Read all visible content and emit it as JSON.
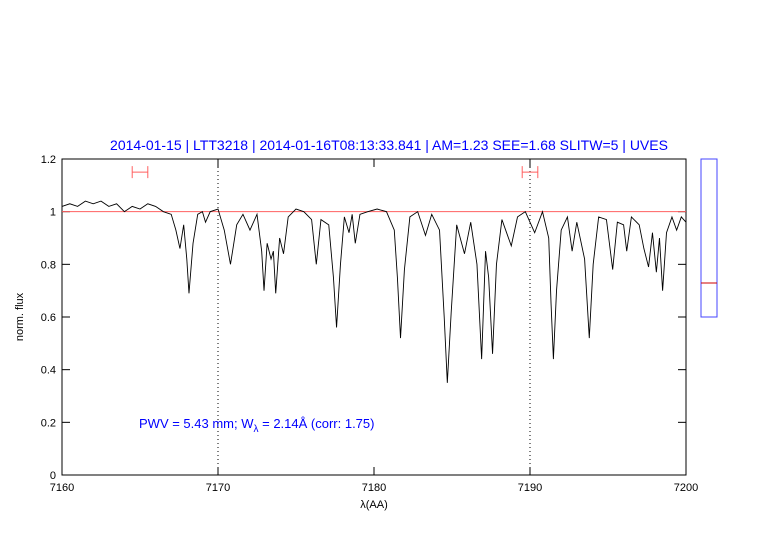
{
  "chart_data": {
    "type": "line",
    "title": "2014-01-15 | LTT3218 | 2014-01-16T08:13:33.841 | AM=1.23 SEE=1.68 SLITW=5 | UVES",
    "xlabel": "λ(AA)",
    "ylabel": "norm. flux",
    "annotation": [
      "PWV = 5.43 mm; W",
      "λ",
      " = 2.14Å (corr: 1.75)"
    ],
    "xlim": [
      7160,
      7200
    ],
    "ylim": [
      0,
      1.2
    ],
    "xticks": [
      7160,
      7170,
      7180,
      7190,
      7200
    ],
    "yticks": [
      0,
      0.2,
      0.4,
      0.6,
      0.8,
      1,
      1.2
    ],
    "hline": 1,
    "hline_color": "#ff6060",
    "vlines": [
      7170,
      7190
    ],
    "markers": [
      {
        "x": [
          7164.5,
          7165.5
        ],
        "y": 1.15
      },
      {
        "x": [
          7189.5,
          7190.5
        ],
        "y": 1.15
      }
    ],
    "marker_color": "#ff6060",
    "series": [
      {
        "color": "#000000",
        "x": [
          7160.0,
          7160.5,
          7161.0,
          7161.5,
          7162.0,
          7162.5,
          7163.0,
          7163.5,
          7164.0,
          7164.5,
          7165.0,
          7165.5,
          7166.0,
          7166.5,
          7167.0,
          7167.3,
          7167.56,
          7167.8,
          7168.0,
          7168.14,
          7168.4,
          7168.7,
          7169.0,
          7169.2,
          7169.5,
          7170.0,
          7170.4,
          7170.8,
          7171.2,
          7171.6,
          7172.05,
          7172.5,
          7172.8,
          7172.95,
          7173.15,
          7173.4,
          7173.55,
          7173.7,
          7173.95,
          7174.2,
          7174.5,
          7175.0,
          7175.5,
          7176.0,
          7176.3,
          7176.6,
          7177.1,
          7177.4,
          7177.6,
          7177.85,
          7178.1,
          7178.4,
          7178.6,
          7178.8,
          7179.1,
          7179.6,
          7180.2,
          7180.8,
          7181.3,
          7181.5,
          7181.7,
          7181.95,
          7182.3,
          7182.8,
          7183.3,
          7183.7,
          7184.2,
          7184.5,
          7184.7,
          7184.95,
          7185.3,
          7185.8,
          7186.2,
          7186.6,
          7186.9,
          7187.15,
          7187.35,
          7187.6,
          7187.85,
          7188.2,
          7188.8,
          7189.2,
          7189.7,
          7190.3,
          7190.8,
          7191.2,
          7191.35,
          7191.5,
          7191.7,
          7192.0,
          7192.4,
          7192.7,
          7193.0,
          7193.5,
          7193.8,
          7194.05,
          7194.4,
          7194.9,
          7195.3,
          7195.6,
          7196.0,
          7196.2,
          7196.5,
          7197.0,
          7197.3,
          7197.6,
          7197.85,
          7198.1,
          7198.3,
          7198.5,
          7198.75,
          7199.1,
          7199.4,
          7199.7,
          7200.0
        ],
        "values": [
          1.02,
          1.03,
          1.02,
          1.04,
          1.03,
          1.04,
          1.02,
          1.03,
          1.0,
          1.02,
          1.01,
          1.03,
          1.02,
          1.0,
          0.99,
          0.93,
          0.86,
          0.95,
          0.82,
          0.69,
          0.88,
          0.99,
          1.0,
          0.96,
          1.0,
          1.01,
          0.93,
          0.8,
          0.95,
          0.99,
          0.93,
          0.99,
          0.85,
          0.7,
          0.88,
          0.82,
          0.85,
          0.69,
          0.9,
          0.84,
          0.98,
          1.01,
          1.0,
          0.97,
          0.8,
          0.97,
          0.95,
          0.75,
          0.56,
          0.8,
          0.98,
          0.92,
          0.99,
          0.88,
          0.99,
          1.0,
          1.01,
          1.0,
          0.93,
          0.75,
          0.52,
          0.78,
          0.98,
          1.0,
          0.91,
          0.99,
          0.93,
          0.6,
          0.35,
          0.62,
          0.95,
          0.84,
          0.96,
          0.8,
          0.44,
          0.85,
          0.75,
          0.46,
          0.8,
          0.97,
          0.87,
          0.98,
          1.0,
          0.92,
          1.0,
          0.9,
          0.65,
          0.44,
          0.7,
          0.93,
          0.98,
          0.85,
          0.96,
          0.82,
          0.52,
          0.8,
          0.98,
          0.97,
          0.78,
          0.96,
          0.95,
          0.85,
          0.98,
          0.95,
          0.86,
          0.79,
          0.92,
          0.77,
          0.9,
          0.7,
          0.92,
          0.98,
          0.93,
          0.98,
          0.96
        ]
      }
    ]
  }
}
